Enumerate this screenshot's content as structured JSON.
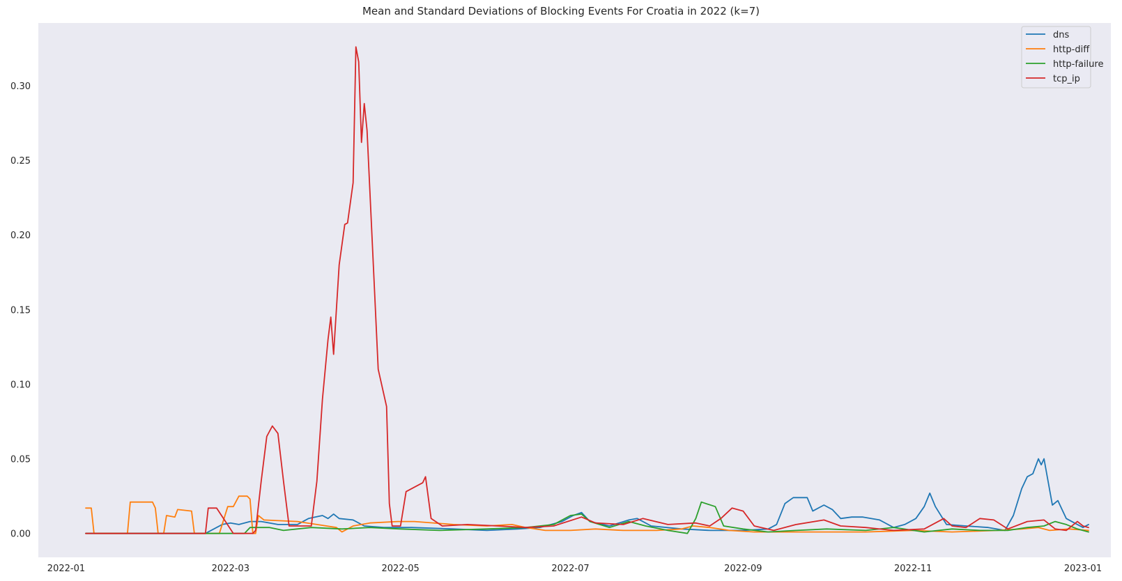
{
  "chart_data": {
    "type": "line",
    "title": "Mean and Standard Deviations of Blocking Events For Croatia in 2022 (k=7)",
    "xlabel": "",
    "ylabel": "",
    "xlim": [
      "2021-12-22",
      "2023-01-11"
    ],
    "ylim": [
      -0.016,
      0.342
    ],
    "x_ticks": [
      "2022-01",
      "2022-03",
      "2022-05",
      "2022-07",
      "2022-09",
      "2022-11",
      "2023-01"
    ],
    "y_ticks": [
      "0.00",
      "0.05",
      "0.10",
      "0.15",
      "0.20",
      "0.25",
      "0.30"
    ],
    "grid": false,
    "background": "#eaeaf2",
    "legend_position": "top-right",
    "series": [
      {
        "name": "dns",
        "color": "#1f77b4",
        "points": [
          [
            "2022-01-08",
            0.0
          ],
          [
            "2022-02-20",
            0.0
          ],
          [
            "2022-02-24",
            0.004
          ],
          [
            "2022-02-26",
            0.006
          ],
          [
            "2022-03-01",
            0.007
          ],
          [
            "2022-03-04",
            0.006
          ],
          [
            "2022-03-08",
            0.008
          ],
          [
            "2022-03-12",
            0.008
          ],
          [
            "2022-03-18",
            0.006
          ],
          [
            "2022-03-25",
            0.006
          ],
          [
            "2022-03-29",
            0.01
          ],
          [
            "2022-04-03",
            0.012
          ],
          [
            "2022-04-05",
            0.01
          ],
          [
            "2022-04-07",
            0.013
          ],
          [
            "2022-04-09",
            0.01
          ],
          [
            "2022-04-14",
            0.009
          ],
          [
            "2022-04-18",
            0.005
          ],
          [
            "2022-04-25",
            0.004
          ],
          [
            "2022-05-05",
            0.004
          ],
          [
            "2022-05-20",
            0.003
          ],
          [
            "2022-06-01",
            0.002
          ],
          [
            "2022-06-12",
            0.003
          ],
          [
            "2022-06-20",
            0.004
          ],
          [
            "2022-06-28",
            0.008
          ],
          [
            "2022-07-02",
            0.012
          ],
          [
            "2022-07-05",
            0.014
          ],
          [
            "2022-07-08",
            0.008
          ],
          [
            "2022-07-15",
            0.005
          ],
          [
            "2022-07-22",
            0.009
          ],
          [
            "2022-07-25",
            0.01
          ],
          [
            "2022-07-30",
            0.005
          ],
          [
            "2022-08-10",
            0.003
          ],
          [
            "2022-08-20",
            0.002
          ],
          [
            "2022-09-01",
            0.002
          ],
          [
            "2022-09-10",
            0.003
          ],
          [
            "2022-09-13",
            0.006
          ],
          [
            "2022-09-16",
            0.02
          ],
          [
            "2022-09-19",
            0.024
          ],
          [
            "2022-09-24",
            0.024
          ],
          [
            "2022-09-26",
            0.015
          ],
          [
            "2022-09-30",
            0.019
          ],
          [
            "2022-10-03",
            0.016
          ],
          [
            "2022-10-06",
            0.01
          ],
          [
            "2022-10-10",
            0.011
          ],
          [
            "2022-10-14",
            0.011
          ],
          [
            "2022-10-20",
            0.009
          ],
          [
            "2022-10-25",
            0.004
          ],
          [
            "2022-10-29",
            0.006
          ],
          [
            "2022-11-02",
            0.01
          ],
          [
            "2022-11-05",
            0.018
          ],
          [
            "2022-11-07",
            0.027
          ],
          [
            "2022-11-09",
            0.018
          ],
          [
            "2022-11-13",
            0.006
          ],
          [
            "2022-11-20",
            0.005
          ],
          [
            "2022-11-28",
            0.004
          ],
          [
            "2022-12-04",
            0.002
          ],
          [
            "2022-12-07",
            0.012
          ],
          [
            "2022-12-10",
            0.03
          ],
          [
            "2022-12-12",
            0.038
          ],
          [
            "2022-12-14",
            0.04
          ],
          [
            "2022-12-16",
            0.05
          ],
          [
            "2022-12-17",
            0.046
          ],
          [
            "2022-12-18",
            0.05
          ],
          [
            "2022-12-21",
            0.019
          ],
          [
            "2022-12-23",
            0.022
          ],
          [
            "2022-12-26",
            0.01
          ],
          [
            "2022-12-30",
            0.006
          ],
          [
            "2023-01-01",
            0.004
          ],
          [
            "2023-01-03",
            0.006
          ]
        ]
      },
      {
        "name": "http-diff",
        "color": "#ff7f0e",
        "points": [
          [
            "2022-01-08",
            0.017
          ],
          [
            "2022-01-10",
            0.017
          ],
          [
            "2022-01-11",
            0.0
          ],
          [
            "2022-01-23",
            0.0
          ],
          [
            "2022-01-24",
            0.021
          ],
          [
            "2022-02-01",
            0.021
          ],
          [
            "2022-02-02",
            0.017
          ],
          [
            "2022-02-03",
            0.0
          ],
          [
            "2022-02-05",
            0.0
          ],
          [
            "2022-02-06",
            0.012
          ],
          [
            "2022-02-09",
            0.011
          ],
          [
            "2022-02-10",
            0.016
          ],
          [
            "2022-02-15",
            0.015
          ],
          [
            "2022-02-16",
            0.0
          ],
          [
            "2022-02-25",
            0.0
          ],
          [
            "2022-02-28",
            0.018
          ],
          [
            "2022-03-02",
            0.018
          ],
          [
            "2022-03-04",
            0.025
          ],
          [
            "2022-03-07",
            0.025
          ],
          [
            "2022-03-08",
            0.023
          ],
          [
            "2022-03-09",
            0.0
          ],
          [
            "2022-03-10",
            0.0
          ],
          [
            "2022-03-11",
            0.012
          ],
          [
            "2022-03-13",
            0.009
          ],
          [
            "2022-03-25",
            0.008
          ],
          [
            "2022-04-01",
            0.006
          ],
          [
            "2022-04-08",
            0.004
          ],
          [
            "2022-04-10",
            0.001
          ],
          [
            "2022-04-14",
            0.005
          ],
          [
            "2022-04-20",
            0.007
          ],
          [
            "2022-04-30",
            0.008
          ],
          [
            "2022-05-06",
            0.008
          ],
          [
            "2022-05-20",
            0.006
          ],
          [
            "2022-06-01",
            0.005
          ],
          [
            "2022-06-10",
            0.006
          ],
          [
            "2022-06-15",
            0.004
          ],
          [
            "2022-06-22",
            0.002
          ],
          [
            "2022-07-01",
            0.002
          ],
          [
            "2022-07-10",
            0.003
          ],
          [
            "2022-07-20",
            0.002
          ],
          [
            "2022-08-01",
            0.002
          ],
          [
            "2022-08-10",
            0.003
          ],
          [
            "2022-08-14",
            0.005
          ],
          [
            "2022-08-20",
            0.004
          ],
          [
            "2022-08-27",
            0.002
          ],
          [
            "2022-09-05",
            0.001
          ],
          [
            "2022-09-15",
            0.001
          ],
          [
            "2022-10-01",
            0.001
          ],
          [
            "2022-10-15",
            0.001
          ],
          [
            "2022-11-01",
            0.002
          ],
          [
            "2022-11-15",
            0.001
          ],
          [
            "2022-12-01",
            0.002
          ],
          [
            "2022-12-10",
            0.003
          ],
          [
            "2022-12-16",
            0.004
          ],
          [
            "2022-12-20",
            0.002
          ],
          [
            "2022-12-27",
            0.003
          ],
          [
            "2023-01-03",
            0.002
          ]
        ]
      },
      {
        "name": "http-failure",
        "color": "#2ca02c",
        "points": [
          [
            "2022-01-08",
            0.0
          ],
          [
            "2022-03-06",
            0.0
          ],
          [
            "2022-03-08",
            0.004
          ],
          [
            "2022-03-15",
            0.004
          ],
          [
            "2022-03-20",
            0.002
          ],
          [
            "2022-03-30",
            0.004
          ],
          [
            "2022-04-10",
            0.003
          ],
          [
            "2022-04-20",
            0.004
          ],
          [
            "2022-05-01",
            0.003
          ],
          [
            "2022-05-15",
            0.002
          ],
          [
            "2022-06-01",
            0.003
          ],
          [
            "2022-06-15",
            0.004
          ],
          [
            "2022-06-25",
            0.006
          ],
          [
            "2022-07-01",
            0.012
          ],
          [
            "2022-07-05",
            0.013
          ],
          [
            "2022-07-08",
            0.008
          ],
          [
            "2022-07-15",
            0.004
          ],
          [
            "2022-07-22",
            0.008
          ],
          [
            "2022-07-28",
            0.005
          ],
          [
            "2022-08-05",
            0.002
          ],
          [
            "2022-08-12",
            0.0
          ],
          [
            "2022-08-15",
            0.01
          ],
          [
            "2022-08-17",
            0.021
          ],
          [
            "2022-08-22",
            0.018
          ],
          [
            "2022-08-25",
            0.005
          ],
          [
            "2022-09-01",
            0.003
          ],
          [
            "2022-09-10",
            0.001
          ],
          [
            "2022-09-20",
            0.002
          ],
          [
            "2022-10-01",
            0.003
          ],
          [
            "2022-10-15",
            0.002
          ],
          [
            "2022-10-25",
            0.004
          ],
          [
            "2022-11-05",
            0.001
          ],
          [
            "2022-11-15",
            0.003
          ],
          [
            "2022-11-25",
            0.002
          ],
          [
            "2022-12-05",
            0.002
          ],
          [
            "2022-12-12",
            0.004
          ],
          [
            "2022-12-18",
            0.005
          ],
          [
            "2022-12-22",
            0.008
          ],
          [
            "2022-12-26",
            0.006
          ],
          [
            "2022-12-30",
            0.003
          ],
          [
            "2023-01-03",
            0.001
          ]
        ]
      },
      {
        "name": "tcp_ip",
        "color": "#d62728",
        "points": [
          [
            "2022-01-08",
            0.0
          ],
          [
            "2022-02-20",
            0.0
          ],
          [
            "2022-02-21",
            0.017
          ],
          [
            "2022-02-24",
            0.017
          ],
          [
            "2022-03-02",
            0.0
          ],
          [
            "2022-03-09",
            0.0
          ],
          [
            "2022-03-10",
            0.002
          ],
          [
            "2022-03-12",
            0.035
          ],
          [
            "2022-03-14",
            0.065
          ],
          [
            "2022-03-16",
            0.072
          ],
          [
            "2022-03-18",
            0.067
          ],
          [
            "2022-03-20",
            0.035
          ],
          [
            "2022-03-22",
            0.005
          ],
          [
            "2022-03-30",
            0.005
          ],
          [
            "2022-04-01",
            0.035
          ],
          [
            "2022-04-03",
            0.09
          ],
          [
            "2022-04-05",
            0.13
          ],
          [
            "2022-04-06",
            0.145
          ],
          [
            "2022-04-07",
            0.12
          ],
          [
            "2022-04-09",
            0.18
          ],
          [
            "2022-04-11",
            0.207
          ],
          [
            "2022-04-12",
            0.208
          ],
          [
            "2022-04-14",
            0.235
          ],
          [
            "2022-04-15",
            0.326
          ],
          [
            "2022-04-16",
            0.316
          ],
          [
            "2022-04-17",
            0.262
          ],
          [
            "2022-04-18",
            0.288
          ],
          [
            "2022-04-19",
            0.27
          ],
          [
            "2022-04-23",
            0.11
          ],
          [
            "2022-04-26",
            0.085
          ],
          [
            "2022-04-27",
            0.02
          ],
          [
            "2022-04-28",
            0.005
          ],
          [
            "2022-05-01",
            0.005
          ],
          [
            "2022-05-03",
            0.028
          ],
          [
            "2022-05-06",
            0.031
          ],
          [
            "2022-05-09",
            0.034
          ],
          [
            "2022-05-10",
            0.038
          ],
          [
            "2022-05-12",
            0.01
          ],
          [
            "2022-05-16",
            0.005
          ],
          [
            "2022-05-25",
            0.006
          ],
          [
            "2022-06-05",
            0.005
          ],
          [
            "2022-06-15",
            0.004
          ],
          [
            "2022-06-25",
            0.005
          ],
          [
            "2022-07-05",
            0.011
          ],
          [
            "2022-07-10",
            0.007
          ],
          [
            "2022-07-20",
            0.006
          ],
          [
            "2022-07-27",
            0.01
          ],
          [
            "2022-08-05",
            0.006
          ],
          [
            "2022-08-15",
            0.007
          ],
          [
            "2022-08-20",
            0.005
          ],
          [
            "2022-08-24",
            0.01
          ],
          [
            "2022-08-28",
            0.017
          ],
          [
            "2022-09-01",
            0.015
          ],
          [
            "2022-09-05",
            0.005
          ],
          [
            "2022-09-12",
            0.002
          ],
          [
            "2022-09-20",
            0.006
          ],
          [
            "2022-09-30",
            0.009
          ],
          [
            "2022-10-06",
            0.005
          ],
          [
            "2022-10-15",
            0.004
          ],
          [
            "2022-10-25",
            0.002
          ],
          [
            "2022-11-05",
            0.003
          ],
          [
            "2022-11-12",
            0.01
          ],
          [
            "2022-11-15",
            0.005
          ],
          [
            "2022-11-20",
            0.004
          ],
          [
            "2022-11-25",
            0.01
          ],
          [
            "2022-11-30",
            0.009
          ],
          [
            "2022-12-05",
            0.003
          ],
          [
            "2022-12-12",
            0.008
          ],
          [
            "2022-12-18",
            0.009
          ],
          [
            "2022-12-22",
            0.003
          ],
          [
            "2022-12-26",
            0.002
          ],
          [
            "2022-12-30",
            0.008
          ],
          [
            "2023-01-01",
            0.005
          ],
          [
            "2023-01-03",
            0.004
          ]
        ]
      }
    ]
  }
}
